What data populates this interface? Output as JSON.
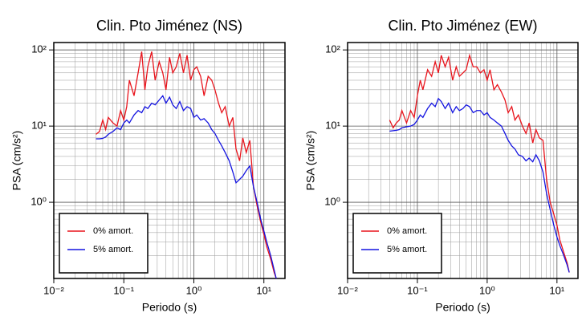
{
  "chart_data": [
    {
      "type": "line",
      "title": "Clin. Pto Jiménez (NS)",
      "xlabel": "Periodo (s)",
      "ylabel": "PSA (cm/s²)",
      "x": [
        0.04,
        0.045,
        0.05,
        0.055,
        0.06,
        0.07,
        0.08,
        0.09,
        0.1,
        0.11,
        0.12,
        0.14,
        0.16,
        0.18,
        0.2,
        0.22,
        0.25,
        0.28,
        0.32,
        0.36,
        0.4,
        0.45,
        0.5,
        0.56,
        0.63,
        0.71,
        0.8,
        0.9,
        1.0,
        1.1,
        1.25,
        1.4,
        1.6,
        1.8,
        2.0,
        2.25,
        2.5,
        2.8,
        3.2,
        3.6,
        4.0,
        4.5,
        5.0,
        5.6,
        6.3,
        7.1,
        8.0,
        9.0,
        10,
        11,
        12.5,
        14,
        15
      ],
      "series": [
        {
          "name": "0% amort.",
          "color": "#e8141c",
          "values": [
            7.8,
            8.5,
            12,
            9,
            13,
            11,
            10,
            16,
            12,
            18,
            40,
            25,
            50,
            95,
            30,
            60,
            95,
            40,
            70,
            50,
            30,
            80,
            50,
            60,
            90,
            50,
            85,
            40,
            55,
            60,
            45,
            25,
            45,
            40,
            30,
            20,
            15,
            18,
            10,
            13,
            5,
            3.5,
            7,
            4.5,
            6.5,
            1.6,
            0.9,
            0.55,
            0.38,
            0.26,
            0.18,
            0.12,
            0.1
          ]
        },
        {
          "name": "5% amort.",
          "color": "#1414e0",
          "values": [
            6.8,
            6.8,
            6.9,
            7.2,
            7.8,
            8.5,
            9.5,
            9,
            11,
            12,
            11,
            14,
            16,
            15,
            18,
            17,
            20,
            19,
            22,
            25,
            20,
            24,
            19,
            17,
            21,
            16,
            18,
            17,
            13,
            14,
            12,
            12.5,
            11,
            9,
            8,
            6.5,
            5.5,
            4.5,
            3.5,
            2.5,
            1.8,
            2,
            2.2,
            2.6,
            3,
            1.6,
            1,
            0.6,
            0.42,
            0.3,
            0.2,
            0.13,
            0.1
          ]
        }
      ],
      "xlim": [
        0.01,
        20
      ],
      "ylim": [
        0.1,
        125
      ],
      "log_x": true,
      "log_y": true,
      "grid": true,
      "legend": "lower left",
      "xticks": [
        {
          "value": 0.01,
          "label": "10⁻²"
        },
        {
          "value": 0.1,
          "label": "10⁻¹"
        },
        {
          "value": 1,
          "label": "10⁰"
        },
        {
          "value": 10,
          "label": "10¹"
        }
      ],
      "yticks": [
        {
          "value": 1,
          "label": "10⁰"
        },
        {
          "value": 10,
          "label": "10¹"
        },
        {
          "value": 100,
          "label": "10²"
        }
      ]
    },
    {
      "type": "line",
      "title": "Clin. Pto Jiménez (EW)",
      "xlabel": "Periodo (s)",
      "ylabel": "PSA (cm/s²)",
      "x": [
        0.04,
        0.045,
        0.05,
        0.055,
        0.06,
        0.07,
        0.08,
        0.09,
        0.1,
        0.11,
        0.12,
        0.14,
        0.16,
        0.18,
        0.2,
        0.22,
        0.25,
        0.28,
        0.32,
        0.36,
        0.4,
        0.45,
        0.5,
        0.56,
        0.63,
        0.71,
        0.8,
        0.9,
        1.0,
        1.1,
        1.25,
        1.4,
        1.6,
        1.8,
        2.0,
        2.25,
        2.5,
        2.8,
        3.2,
        3.6,
        4.0,
        4.5,
        5.0,
        5.6,
        6.3,
        7.1,
        8.0,
        9.0,
        10,
        11,
        12.5,
        14,
        15
      ],
      "series": [
        {
          "name": "0% amort.",
          "color": "#e8141c",
          "values": [
            12,
            9.5,
            11,
            12,
            16,
            11,
            16,
            13,
            25,
            40,
            30,
            55,
            45,
            70,
            50,
            85,
            60,
            80,
            40,
            60,
            45,
            50,
            55,
            85,
            60,
            60,
            50,
            55,
            40,
            55,
            30,
            35,
            28,
            22,
            15,
            18,
            12,
            14,
            10,
            8,
            11,
            6,
            9,
            7,
            6.5,
            2,
            1,
            0.7,
            0.5,
            0.32,
            0.22,
            0.16,
            0.12
          ]
        },
        {
          "name": "5% amort.",
          "color": "#1414e0",
          "values": [
            8.6,
            8.7,
            8.8,
            9,
            9.5,
            9.8,
            10,
            10.5,
            12,
            14,
            13,
            17,
            20,
            18,
            23,
            21,
            17,
            20,
            15,
            18,
            16,
            17,
            19,
            18,
            15,
            16,
            16,
            14,
            15,
            13,
            12,
            11,
            10,
            8,
            6.5,
            5.5,
            5,
            4.2,
            4,
            3.5,
            3.8,
            3.4,
            4.2,
            3.5,
            2.5,
            1.3,
            0.8,
            0.5,
            0.35,
            0.27,
            0.2,
            0.15,
            0.12
          ]
        }
      ],
      "xlim": [
        0.01,
        20
      ],
      "ylim": [
        0.1,
        125
      ],
      "log_x": true,
      "log_y": true,
      "grid": true,
      "legend": "lower left",
      "xticks": [
        {
          "value": 0.01,
          "label": "10⁻²"
        },
        {
          "value": 0.1,
          "label": "10⁻¹"
        },
        {
          "value": 1,
          "label": "10⁰"
        },
        {
          "value": 10,
          "label": "10¹"
        }
      ],
      "yticks": [
        {
          "value": 1,
          "label": "10⁰"
        },
        {
          "value": 10,
          "label": "10¹"
        },
        {
          "value": 100,
          "label": "10²"
        }
      ]
    }
  ]
}
